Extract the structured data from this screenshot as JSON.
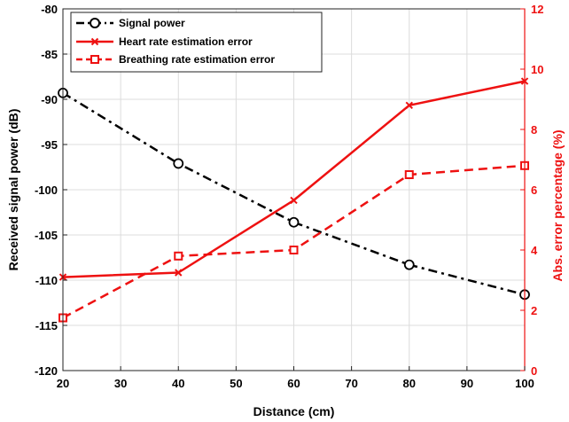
{
  "chart_data": {
    "type": "line",
    "x": [
      20,
      40,
      60,
      80,
      100
    ],
    "xlabel": "Distance (cm)",
    "xlim": [
      20,
      100
    ],
    "xticks": [
      20,
      30,
      40,
      50,
      60,
      70,
      80,
      90,
      100
    ],
    "ylabel_left": "Received signal power (dB)",
    "ylim_left": [
      -120,
      -80
    ],
    "yticks_left": [
      -120,
      -115,
      -110,
      -105,
      -100,
      -95,
      -90,
      -85,
      -80
    ],
    "ylabel_right": "Abs. error percentage (%)",
    "ylim_right": [
      0,
      12
    ],
    "yticks_right": [
      0,
      2,
      4,
      6,
      8,
      10,
      12
    ],
    "grid": true,
    "legend_position": "top-left",
    "series": [
      {
        "name": "Signal power",
        "axis": "left",
        "values": [
          -89.3,
          -97.1,
          -103.6,
          -108.3,
          -111.6
        ],
        "color": "#000000",
        "line_style": "dash-dot",
        "marker": "circle"
      },
      {
        "name": "Heart rate estimation error",
        "axis": "right",
        "values": [
          3.1,
          3.25,
          5.65,
          8.8,
          9.6
        ],
        "color": "#ee1111",
        "line_style": "solid",
        "marker": "x"
      },
      {
        "name": "Breathing rate estimation error",
        "axis": "right",
        "values": [
          1.75,
          3.8,
          4.0,
          6.5,
          6.8
        ],
        "color": "#ee1111",
        "line_style": "dashed",
        "marker": "square"
      }
    ]
  }
}
